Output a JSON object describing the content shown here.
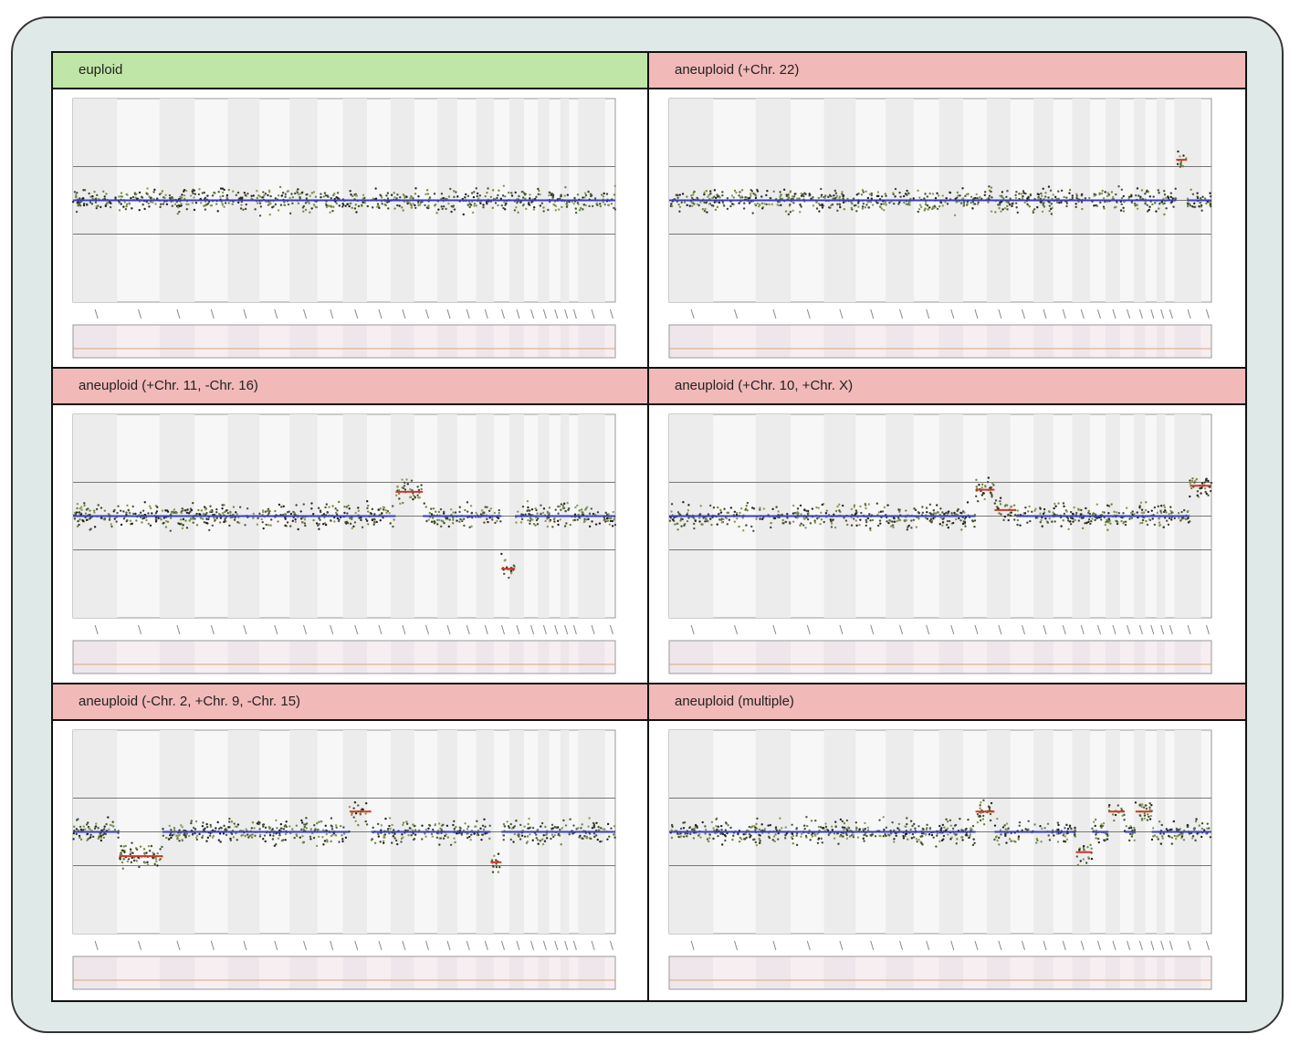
{
  "panels": [
    {
      "title": "euploid"
    },
    {
      "title": "aneuploid (+Chr. 22)"
    },
    {
      "title": "aneuploid (+Chr. 11, -Chr. 16)"
    },
    {
      "title": "aneuploid (+Chr. 10, +Chr. X)"
    },
    {
      "title": "aneuploid (-Chr. 2, +Chr. 9, -Chr. 15)"
    },
    {
      "title": "aneuploid (multiple)"
    }
  ]
}
